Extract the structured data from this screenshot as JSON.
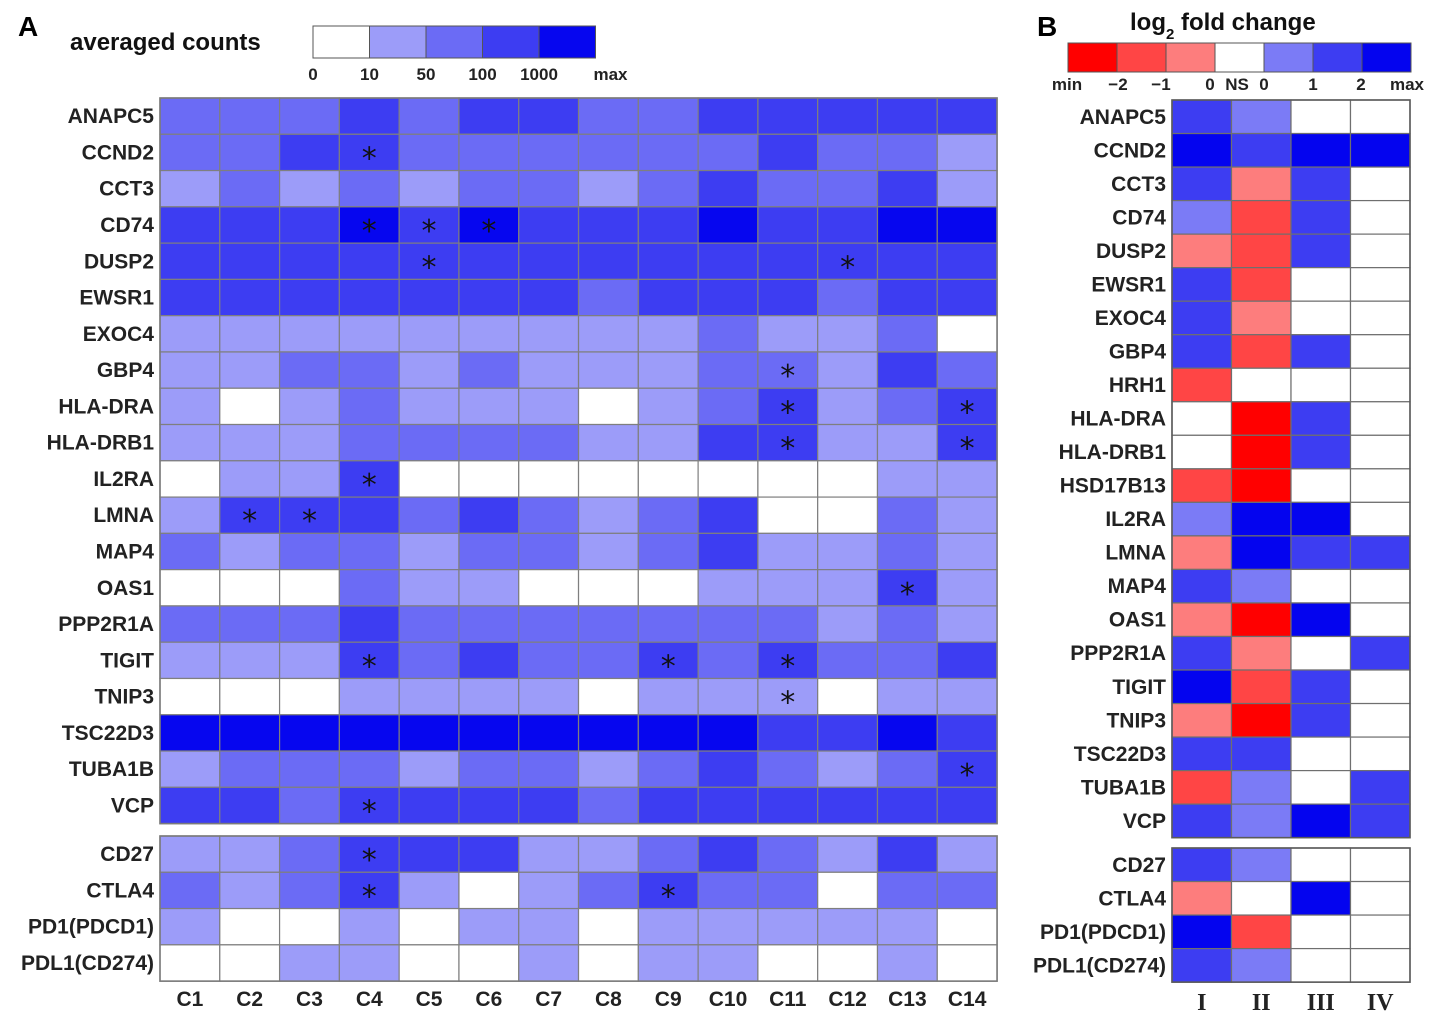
{
  "chart_data": [
    {
      "type": "heatmap",
      "panel": "A",
      "title": "averaged counts",
      "legend": {
        "tick_labels": [
          "0",
          "10",
          "50",
          "100",
          "1000",
          "max"
        ],
        "colors": [
          "#ffffff",
          "#9c9cf9",
          "#6b6bf5",
          "#3d3df2",
          "#0606ef"
        ]
      },
      "columns": [
        "C1",
        "C2",
        "C3",
        "C4",
        "C5",
        "C6",
        "C7",
        "C8",
        "C9",
        "C10",
        "C11",
        "C12",
        "C13",
        "C14"
      ],
      "groups": [
        {
          "rows": [
            "ANAPC5",
            "CCND2",
            "CCT3",
            "CD74",
            "DUSP2",
            "EWSR1",
            "EXOC4",
            "GBP4",
            "HLA-DRA",
            "HLA-DRB1",
            "IL2RA",
            "LMNA",
            "MAP4",
            "OAS1",
            "PPP2R1A",
            "TIGIT",
            "TNIP3",
            "TSC22D3",
            "TUBA1B",
            "VCP"
          ],
          "levels": [
            [
              2,
              2,
              2,
              3,
              2,
              3,
              3,
              2,
              2,
              3,
              3,
              3,
              3,
              3
            ],
            [
              2,
              2,
              3,
              3,
              2,
              2,
              2,
              2,
              2,
              2,
              3,
              2,
              2,
              1
            ],
            [
              1,
              2,
              1,
              2,
              1,
              2,
              2,
              1,
              2,
              3,
              2,
              2,
              3,
              1
            ],
            [
              3,
              3,
              3,
              4,
              3,
              4,
              3,
              3,
              3,
              4,
              3,
              3,
              4,
              4
            ],
            [
              3,
              3,
              3,
              3,
              3,
              3,
              3,
              3,
              3,
              3,
              3,
              3,
              3,
              3
            ],
            [
              3,
              3,
              3,
              3,
              3,
              3,
              3,
              2,
              3,
              3,
              3,
              2,
              3,
              3
            ],
            [
              1,
              1,
              1,
              1,
              1,
              1,
              1,
              1,
              1,
              2,
              1,
              1,
              2,
              0
            ],
            [
              1,
              1,
              2,
              2,
              1,
              2,
              1,
              1,
              1,
              2,
              2,
              1,
              3,
              2
            ],
            [
              1,
              0,
              1,
              2,
              1,
              1,
              1,
              0,
              1,
              2,
              3,
              1,
              2,
              3
            ],
            [
              1,
              1,
              1,
              2,
              2,
              2,
              2,
              1,
              1,
              3,
              3,
              1,
              1,
              3
            ],
            [
              0,
              1,
              1,
              3,
              0,
              0,
              0,
              0,
              0,
              0,
              0,
              0,
              1,
              1
            ],
            [
              1,
              3,
              3,
              3,
              2,
              3,
              2,
              1,
              2,
              3,
              0,
              0,
              2,
              1
            ],
            [
              2,
              1,
              2,
              2,
              1,
              2,
              2,
              1,
              2,
              3,
              1,
              1,
              2,
              1
            ],
            [
              0,
              0,
              0,
              2,
              1,
              1,
              0,
              0,
              0,
              1,
              1,
              1,
              3,
              1
            ],
            [
              2,
              2,
              2,
              3,
              2,
              2,
              2,
              2,
              2,
              2,
              2,
              1,
              2,
              1
            ],
            [
              1,
              1,
              1,
              3,
              2,
              3,
              2,
              2,
              3,
              2,
              3,
              2,
              2,
              3
            ],
            [
              0,
              0,
              0,
              1,
              1,
              1,
              1,
              0,
              1,
              1,
              1,
              0,
              1,
              1
            ],
            [
              4,
              4,
              4,
              4,
              4,
              4,
              4,
              4,
              4,
              4,
              3,
              3,
              4,
              3
            ],
            [
              1,
              2,
              2,
              2,
              1,
              2,
              2,
              1,
              2,
              3,
              2,
              1,
              2,
              3
            ],
            [
              3,
              3,
              2,
              3,
              3,
              3,
              3,
              2,
              3,
              3,
              3,
              3,
              3,
              3
            ]
          ],
          "stars": [
            [
              1,
              3
            ],
            [
              3,
              3
            ],
            [
              3,
              4
            ],
            [
              3,
              5
            ],
            [
              4,
              4
            ],
            [
              4,
              11
            ],
            [
              7,
              10
            ],
            [
              8,
              10
            ],
            [
              8,
              13
            ],
            [
              9,
              10
            ],
            [
              9,
              13
            ],
            [
              10,
              3
            ],
            [
              11,
              1
            ],
            [
              11,
              2
            ],
            [
              13,
              12
            ],
            [
              15,
              3
            ],
            [
              15,
              8
            ],
            [
              15,
              10
            ],
            [
              16,
              10
            ],
            [
              18,
              13
            ],
            [
              19,
              3
            ]
          ]
        },
        {
          "rows": [
            "CD27",
            "CTLA4",
            "PD1(PDCD1)",
            "PDL1(CD274)"
          ],
          "levels": [
            [
              1,
              1,
              2,
              3,
              3,
              3,
              1,
              1,
              2,
              3,
              2,
              1,
              3,
              1
            ],
            [
              2,
              1,
              2,
              3,
              1,
              0,
              1,
              2,
              3,
              2,
              2,
              0,
              2,
              2
            ],
            [
              1,
              0,
              0,
              1,
              0,
              1,
              1,
              0,
              1,
              1,
              1,
              1,
              1,
              0
            ],
            [
              0,
              0,
              1,
              1,
              0,
              0,
              1,
              0,
              1,
              1,
              0,
              0,
              1,
              0
            ]
          ],
          "stars": [
            [
              0,
              3
            ],
            [
              1,
              3
            ],
            [
              1,
              8
            ]
          ]
        }
      ]
    },
    {
      "type": "heatmap",
      "panel": "B",
      "title": "log",
      "title_sub": "2",
      "title_rest": " fold change",
      "legend": {
        "tick_labels": [
          "min",
          "−2",
          "−1",
          "0",
          "NS",
          "0",
          "1",
          "2",
          "max"
        ],
        "colors": [
          "#ff0000",
          "#ff4545",
          "#fd7d7d",
          "#ffffff",
          "#7b7bf6",
          "#3d3df2",
          "#0404ef"
        ]
      },
      "columns": [
        "I",
        "II",
        "III",
        "IV"
      ],
      "groups": [
        {
          "rows": [
            "ANAPC5",
            "CCND2",
            "CCT3",
            "CD74",
            "DUSP2",
            "EWSR1",
            "EXOC4",
            "GBP4",
            "HRH1",
            "HLA-DRA",
            "HLA-DRB1",
            "HSD17B13",
            "IL2RA",
            "LMNA",
            "MAP4",
            "OAS1",
            "PPP2R1A",
            "TIGIT",
            "TNIP3",
            "TSC22D3",
            "TUBA1B",
            "VCP"
          ],
          "values": [
            [
              2,
              1,
              0,
              0
            ],
            [
              3,
              2,
              3,
              3
            ],
            [
              2,
              -1,
              2,
              0
            ],
            [
              1,
              -2,
              2,
              0
            ],
            [
              -1,
              -2,
              2,
              0
            ],
            [
              2,
              -2,
              0,
              0
            ],
            [
              2,
              -1,
              0,
              0
            ],
            [
              2,
              -2,
              2,
              0
            ],
            [
              -2,
              0,
              0,
              0
            ],
            [
              0,
              -3,
              2,
              0
            ],
            [
              0,
              -3,
              2,
              0
            ],
            [
              -2,
              -3,
              0,
              0
            ],
            [
              1,
              3,
              3,
              0
            ],
            [
              -1,
              3,
              2,
              2
            ],
            [
              2,
              1,
              0,
              0
            ],
            [
              -1,
              -3,
              3,
              0
            ],
            [
              2,
              -1,
              0,
              2
            ],
            [
              3,
              -2,
              2,
              0
            ],
            [
              -1,
              -3,
              2,
              0
            ],
            [
              2,
              2,
              0,
              0
            ],
            [
              -2,
              1,
              0,
              2
            ],
            [
              2,
              1,
              3,
              2
            ]
          ]
        },
        {
          "rows": [
            "CD27",
            "CTLA4",
            "PD1(PDCD1)",
            "PDL1(CD274)"
          ],
          "values": [
            [
              2,
              1,
              0,
              0
            ],
            [
              -1,
              0,
              3,
              0
            ],
            [
              3,
              -2,
              0,
              0
            ],
            [
              2,
              1,
              0,
              0
            ]
          ]
        }
      ]
    }
  ]
}
